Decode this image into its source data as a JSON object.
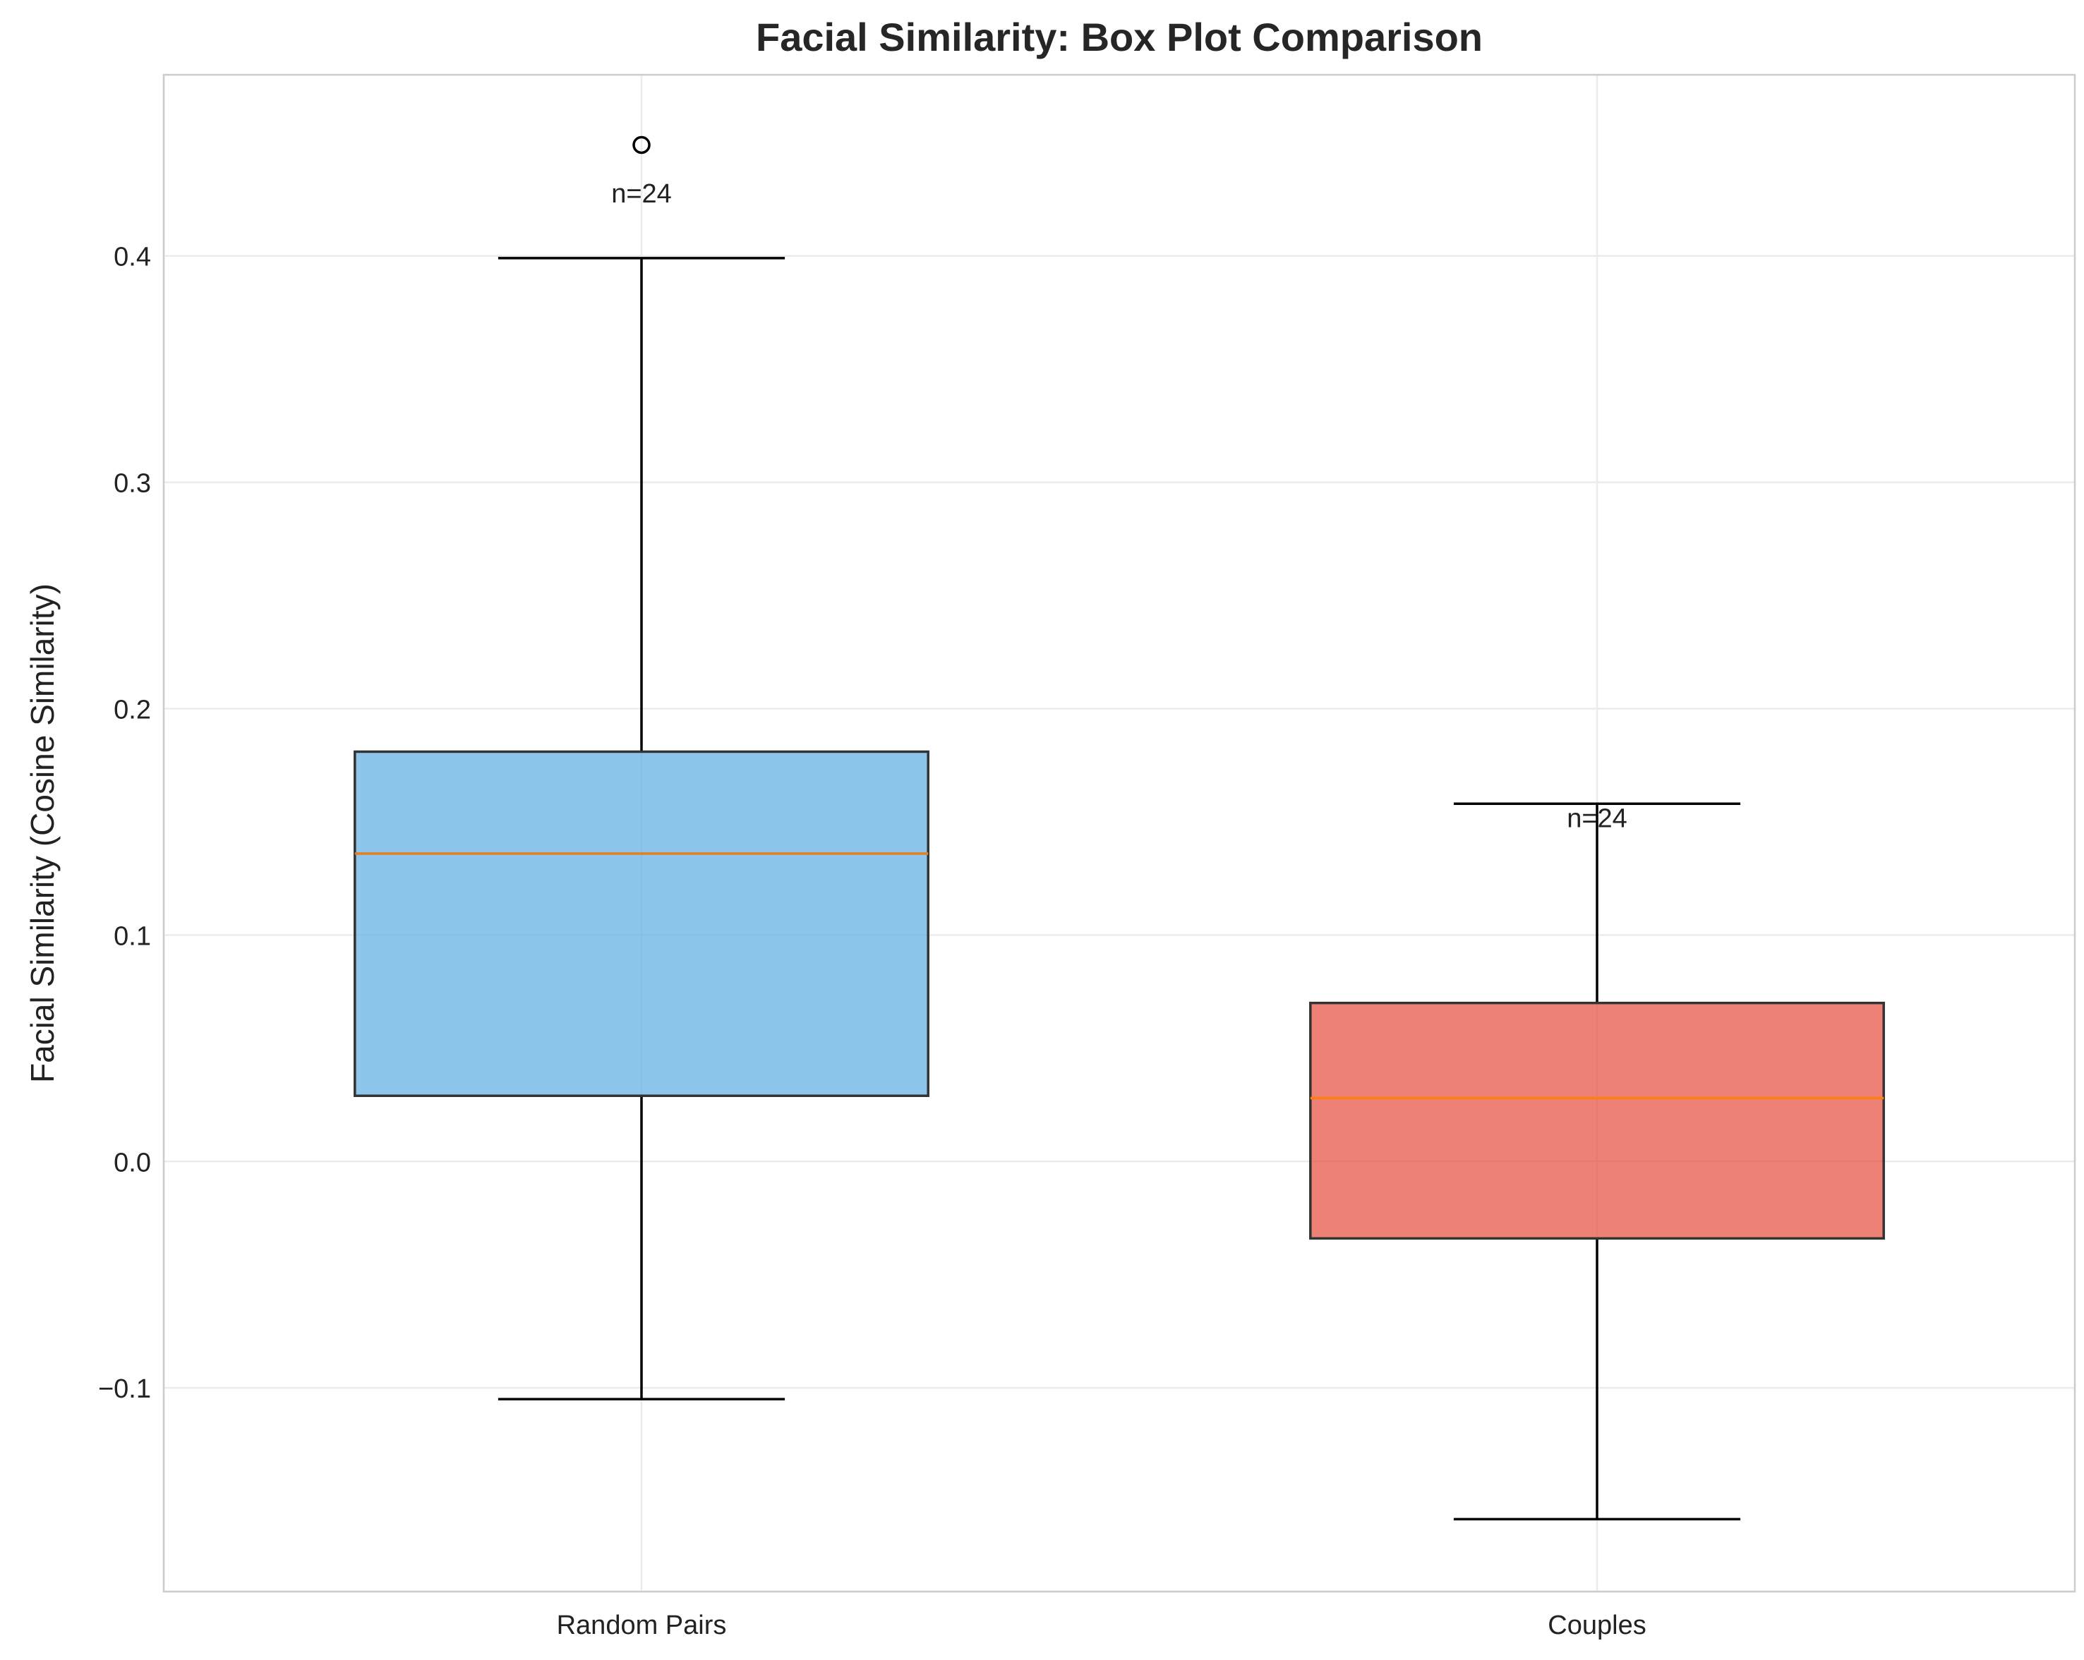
{
  "chart_data": {
    "type": "box",
    "title": "Facial Similarity: Box Plot Comparison",
    "xlabel": "",
    "ylabel": "Facial Similarity (Cosine Similarity)",
    "ylim": [
      -0.19,
      0.48
    ],
    "yticks": [
      -0.1,
      0.0,
      0.1,
      0.2,
      0.3,
      0.4
    ],
    "ytick_labels": [
      "−0.1",
      "0.0",
      "0.1",
      "0.2",
      "0.3",
      "0.4"
    ],
    "grid": true,
    "categories": [
      "Random Pairs",
      "Couples"
    ],
    "boxes": [
      {
        "name": "Random Pairs",
        "whisker_low": -0.105,
        "q1": 0.029,
        "median": 0.136,
        "q3": 0.181,
        "whisker_high": 0.399,
        "outliers": [
          0.449
        ],
        "color": "#5DADE2",
        "median_color": "#E67E22",
        "annotation": "n=24",
        "annotation_y": 0.428
      },
      {
        "name": "Couples",
        "whisker_low": -0.158,
        "q1": -0.034,
        "median": 0.028,
        "q3": 0.07,
        "whisker_high": 0.158,
        "outliers": [],
        "color": "#E74C3C",
        "median_color": "#FF7F0E",
        "annotation": "n=24",
        "annotation_y": 0.152
      }
    ]
  }
}
